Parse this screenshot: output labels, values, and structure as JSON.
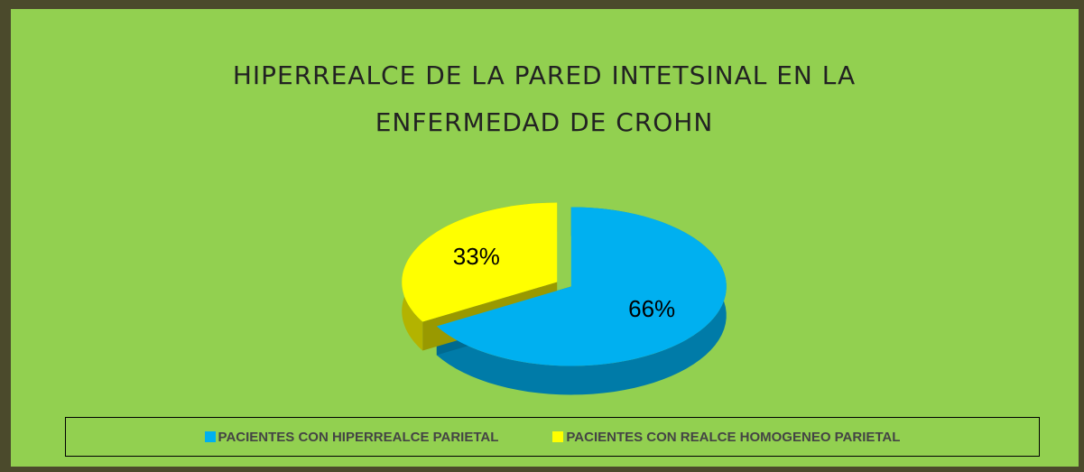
{
  "chart_data": {
    "type": "pie",
    "title": "HIPERREALCE DE LA PARED INTETSINAL EN LA ENFERMEDAD DE CROHN",
    "categories": [
      "PACIENTES CON HIPERREALCE PARIETAL",
      "PACIENTES CON REALCE HOMOGENEO PARIETAL"
    ],
    "values": [
      66,
      33
    ],
    "value_labels": [
      "66%",
      "33%"
    ],
    "colors": [
      "#00b0f0",
      "#ffff00"
    ]
  }
}
